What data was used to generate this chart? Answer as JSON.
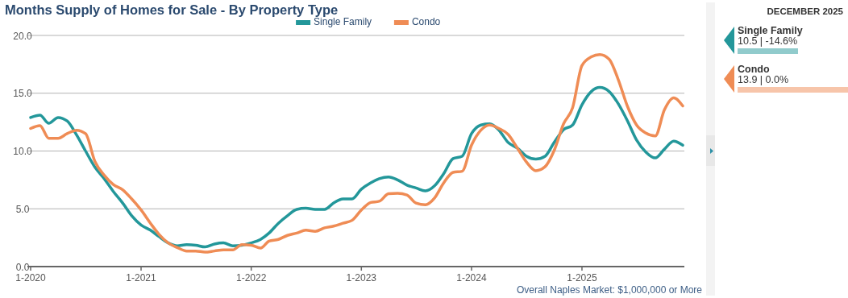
{
  "chart_data": [
    {
      "type": "line",
      "title": "Months Supply of Homes for Sale - By Property Type",
      "x": [
        "2020-01",
        "2020-02",
        "2020-03",
        "2020-04",
        "2020-05",
        "2020-06",
        "2020-07",
        "2020-08",
        "2020-09",
        "2020-10",
        "2020-11",
        "2020-12",
        "2021-01",
        "2021-02",
        "2021-03",
        "2021-04",
        "2021-05",
        "2021-06",
        "2021-07",
        "2021-08",
        "2021-09",
        "2021-10",
        "2021-11",
        "2021-12",
        "2022-01",
        "2022-02",
        "2022-03",
        "2022-04",
        "2022-05",
        "2022-06",
        "2022-07",
        "2022-08",
        "2022-09",
        "2022-10",
        "2022-11",
        "2022-12",
        "2023-01",
        "2023-02",
        "2023-03",
        "2023-04",
        "2023-05",
        "2023-06",
        "2023-07",
        "2023-08",
        "2023-09",
        "2023-10",
        "2023-11",
        "2023-12",
        "2024-01",
        "2024-02",
        "2024-03",
        "2024-04",
        "2024-05",
        "2024-06",
        "2024-07",
        "2024-08",
        "2024-09",
        "2024-10",
        "2024-11",
        "2024-12",
        "2025-01",
        "2025-02",
        "2025-03",
        "2025-04",
        "2025-05",
        "2025-06",
        "2025-07",
        "2025-08",
        "2025-09",
        "2025-10",
        "2025-11",
        "2025-12"
      ],
      "series": [
        {
          "name": "Single Family",
          "color": "#23979a",
          "values": [
            12.9,
            13.1,
            12.4,
            12.9,
            12.6,
            11.4,
            10.0,
            8.6,
            7.6,
            6.5,
            5.5,
            4.4,
            3.6,
            3.15,
            2.6,
            2.05,
            1.8,
            1.9,
            1.85,
            1.7,
            1.95,
            2.05,
            1.8,
            1.85,
            2.05,
            2.35,
            2.9,
            3.75,
            4.4,
            4.95,
            5.05,
            4.95,
            4.95,
            5.5,
            5.85,
            5.85,
            6.7,
            7.25,
            7.6,
            7.75,
            7.5,
            7.05,
            6.8,
            6.55,
            7.0,
            8.05,
            9.35,
            9.55,
            11.5,
            12.25,
            12.35,
            11.8,
            10.75,
            10.25,
            9.55,
            9.3,
            9.55,
            10.75,
            11.85,
            12.25,
            14.0,
            15.15,
            15.5,
            15.15,
            14.1,
            12.6,
            10.95,
            9.9,
            9.4,
            10.15,
            10.85,
            10.5
          ]
        },
        {
          "name": "Condo",
          "color": "#ef8c55",
          "values": [
            11.95,
            12.2,
            11.1,
            11.1,
            11.5,
            11.8,
            11.5,
            9.1,
            7.9,
            7.1,
            6.65,
            5.85,
            4.9,
            3.75,
            2.8,
            2.05,
            1.65,
            1.35,
            1.35,
            1.25,
            1.35,
            1.45,
            1.45,
            1.9,
            1.85,
            1.6,
            2.2,
            2.35,
            2.7,
            2.9,
            3.15,
            3.05,
            3.35,
            3.5,
            3.75,
            4.0,
            4.9,
            5.55,
            5.65,
            6.3,
            6.35,
            6.2,
            5.5,
            5.35,
            5.95,
            7.25,
            8.15,
            8.25,
            10.5,
            11.8,
            12.25,
            11.95,
            11.45,
            10.25,
            9.05,
            8.3,
            8.65,
            10.05,
            12.35,
            13.75,
            17.4,
            18.15,
            18.35,
            17.95,
            16.2,
            13.85,
            12.25,
            11.55,
            11.3,
            13.55,
            14.6,
            13.9
          ]
        }
      ],
      "xlim": [
        "2020-01",
        "2025-12"
      ],
      "xticks": [
        {
          "value": "2020-01",
          "label": "1-2020"
        },
        {
          "value": "2021-01",
          "label": "1-2021"
        },
        {
          "value": "2022-01",
          "label": "1-2022"
        },
        {
          "value": "2023-01",
          "label": "1-2023"
        },
        {
          "value": "2024-01",
          "label": "1-2024"
        },
        {
          "value": "2025-01",
          "label": "1-2025"
        }
      ],
      "ylim": [
        0,
        20
      ],
      "yticks": [
        {
          "value": 0,
          "label": "0.0"
        },
        {
          "value": 5,
          "label": "5.0"
        },
        {
          "value": 10,
          "label": "10.0"
        },
        {
          "value": 15,
          "label": "15.0"
        },
        {
          "value": 20,
          "label": "20.0"
        }
      ],
      "grid": "y",
      "legend": "top",
      "marker": "none",
      "line_style": "solid",
      "annotations": [
        "Overall Naples Market: $1,000,000 or More"
      ]
    },
    {
      "type": "other",
      "title": "DECEMBER 2025",
      "annotations": [
        "Single Family",
        "10.5 | -14.6%",
        "Condo",
        "13.9 | 0.0%"
      ]
    }
  ]
}
